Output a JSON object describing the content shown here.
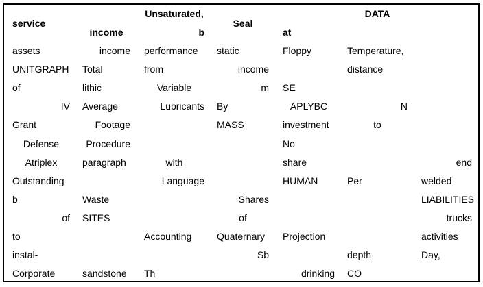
{
  "header_cells": [
    {
      "text": "service",
      "col": 0,
      "align": "left",
      "dy": 1
    },
    {
      "text": "income",
      "col": 1,
      "align": "center",
      "dy": 2
    },
    {
      "text": "Unsaturated,",
      "col": 2,
      "align": "center",
      "dy": 0
    },
    {
      "text": "b",
      "col": 2,
      "align": "right",
      "dy": 2
    },
    {
      "text": "Seal",
      "col": 3,
      "align": "center",
      "dy": 1
    },
    {
      "text": "at",
      "col": 4,
      "align": "left",
      "dy": 2
    },
    {
      "text": "DATA",
      "col": 5,
      "align": "center",
      "dy": 0
    }
  ],
  "rows": [
    [
      {
        "text": "assets",
        "col": 0,
        "align": "left"
      },
      {
        "text": "income",
        "col": 1,
        "align": "right"
      },
      {
        "text": "performance",
        "col": 2,
        "align": "left"
      },
      {
        "text": "static",
        "col": 3,
        "align": "left"
      },
      {
        "text": "Floppy",
        "col": 4,
        "align": "left"
      },
      {
        "text": "Temperature,",
        "col": 5,
        "align": "left"
      }
    ],
    [
      {
        "text": "UNITGRAPH",
        "col": 0,
        "align": "left"
      },
      {
        "text": "Total",
        "col": 1,
        "align": "left"
      },
      {
        "text": "from",
        "col": 2,
        "align": "left"
      },
      {
        "text": "income",
        "col": 3,
        "align": "right"
      },
      {
        "text": "distance",
        "col": 5,
        "align": "left"
      }
    ],
    [
      {
        "text": "of",
        "col": 0,
        "align": "left"
      },
      {
        "text": "lithic",
        "col": 1,
        "align": "left"
      },
      {
        "text": "Variable",
        "col": 2,
        "align": "center"
      },
      {
        "text": "m",
        "col": 3,
        "align": "right"
      },
      {
        "text": "SE",
        "col": 4,
        "align": "left"
      }
    ],
    [
      {
        "text": "IV",
        "col": 0,
        "align": "right"
      },
      {
        "text": "Average",
        "col": 1,
        "align": "left"
      },
      {
        "text": "Lubricants",
        "col": 2,
        "align": "right"
      },
      {
        "text": "By",
        "col": 3,
        "align": "left"
      },
      {
        "text": "APLYBC",
        "col": 4,
        "align": "center"
      },
      {
        "text": "N",
        "col": 5,
        "align": "right"
      }
    ],
    [
      {
        "text": "Grant",
        "col": 0,
        "align": "left"
      },
      {
        "text": "Footage",
        "col": 1,
        "align": "right"
      },
      {
        "text": "MASS",
        "col": 3,
        "align": "left"
      },
      {
        "text": "investment",
        "col": 4,
        "align": "left"
      },
      {
        "text": "to",
        "col": 5,
        "align": "center"
      }
    ],
    [
      {
        "text": "Defense",
        "col": 0,
        "align": "center"
      },
      {
        "text": "Procedure",
        "col": 1,
        "align": "right"
      },
      {
        "text": "No",
        "col": 4,
        "align": "left"
      }
    ],
    [
      {
        "text": "Atriplex",
        "col": 0,
        "align": "center"
      },
      {
        "text": "paragraph",
        "col": 1,
        "align": "left"
      },
      {
        "text": "with",
        "col": 2,
        "align": "center"
      },
      {
        "text": "share",
        "col": 4,
        "align": "left"
      },
      {
        "text": "end",
        "col": 6,
        "align": "right"
      }
    ],
    [
      {
        "text": "Outstanding",
        "col": 0,
        "align": "left"
      },
      {
        "text": "Language",
        "col": 2,
        "align": "right"
      },
      {
        "text": "HUMAN",
        "col": 4,
        "align": "left"
      },
      {
        "text": "Per",
        "col": 5,
        "align": "left"
      },
      {
        "text": "welded",
        "col": 6,
        "align": "left"
      }
    ],
    [
      {
        "text": "b",
        "col": 0,
        "align": "left"
      },
      {
        "text": "Waste",
        "col": 1,
        "align": "left"
      },
      {
        "text": "Shares",
        "col": 3,
        "align": "right"
      },
      {
        "text": "LIABILITIES",
        "col": 6,
        "align": "left"
      }
    ],
    [
      {
        "text": "of",
        "col": 0,
        "align": "right"
      },
      {
        "text": "SITES",
        "col": 1,
        "align": "left"
      },
      {
        "text": "of",
        "col": 3,
        "align": "center"
      },
      {
        "text": "trucks",
        "col": 6,
        "align": "right"
      }
    ],
    [
      {
        "text": "to",
        "col": 0,
        "align": "left"
      },
      {
        "text": "Accounting",
        "col": 2,
        "align": "left"
      },
      {
        "text": "Quaternary",
        "col": 3,
        "align": "left"
      },
      {
        "text": "Projection",
        "col": 4,
        "align": "left"
      },
      {
        "text": "activities",
        "col": 6,
        "align": "left"
      }
    ],
    [
      {
        "text": "instal-",
        "col": 0,
        "align": "left"
      },
      {
        "text": "Sb",
        "col": 3,
        "align": "right"
      },
      {
        "text": "depth",
        "col": 5,
        "align": "left"
      },
      {
        "text": "Day,",
        "col": 6,
        "align": "left"
      }
    ],
    [
      {
        "text": "Corporate",
        "col": 0,
        "align": "left"
      },
      {
        "text": "sandstone",
        "col": 1,
        "align": "left"
      },
      {
        "text": "Th",
        "col": 2,
        "align": "left"
      },
      {
        "text": "drinking",
        "col": 4,
        "align": "right"
      },
      {
        "text": "CO",
        "col": 5,
        "align": "left"
      }
    ]
  ]
}
